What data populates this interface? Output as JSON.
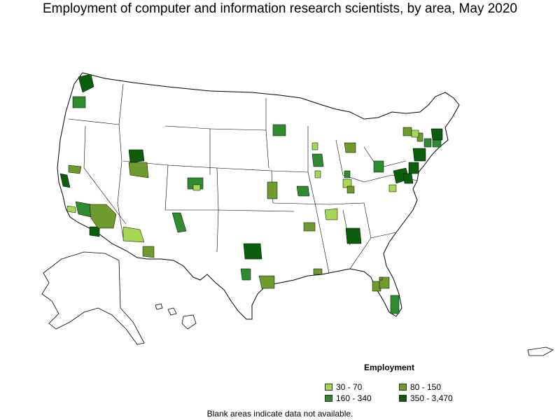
{
  "map": {
    "title": "Employment of computer and information research scientists, by area, May 2020",
    "note": "Blank areas indicate data not available.",
    "legend": {
      "title": "Employment",
      "items": [
        {
          "label": "30 - 70",
          "color": "#a6d854"
        },
        {
          "label": "80 - 150",
          "color": "#6e9a2e"
        },
        {
          "label": "160 - 340",
          "color": "#2e8b2e"
        },
        {
          "label": "350 - 3,470",
          "color": "#0b5e0b"
        }
      ]
    },
    "regions": [
      {
        "name": "seattle",
        "cls": 3
      },
      {
        "name": "portland",
        "cls": 2
      },
      {
        "name": "sacramento",
        "cls": 1
      },
      {
        "name": "san-jose",
        "cls": 3
      },
      {
        "name": "santa-barbara",
        "cls": 0
      },
      {
        "name": "los-angeles",
        "cls": 2
      },
      {
        "name": "san-diego",
        "cls": 3
      },
      {
        "name": "las-vegas",
        "cls": 1
      },
      {
        "name": "phoenix",
        "cls": 0
      },
      {
        "name": "tucson",
        "cls": 1
      },
      {
        "name": "salt-lake-city",
        "cls": 3
      },
      {
        "name": "provo",
        "cls": 1
      },
      {
        "name": "denver",
        "cls": 2
      },
      {
        "name": "colorado-springs",
        "cls": 0
      },
      {
        "name": "albuquerque",
        "cls": 2
      },
      {
        "name": "dallas",
        "cls": 3
      },
      {
        "name": "austin",
        "cls": 2
      },
      {
        "name": "houston",
        "cls": 1
      },
      {
        "name": "kansas-city",
        "cls": 1
      },
      {
        "name": "st-louis",
        "cls": 2
      },
      {
        "name": "minneapolis",
        "cls": 2
      },
      {
        "name": "chicago",
        "cls": 2
      },
      {
        "name": "champaign",
        "cls": 0
      },
      {
        "name": "detroit",
        "cls": 1
      },
      {
        "name": "madison",
        "cls": 0
      },
      {
        "name": "columbus",
        "cls": 2
      },
      {
        "name": "cincinnati",
        "cls": 0
      },
      {
        "name": "pittsburgh",
        "cls": 2
      },
      {
        "name": "nashville",
        "cls": 0
      },
      {
        "name": "huntsville",
        "cls": 1
      },
      {
        "name": "atlanta",
        "cls": 3
      },
      {
        "name": "tallahassee",
        "cls": 1
      },
      {
        "name": "tampa",
        "cls": 1
      },
      {
        "name": "orlando",
        "cls": 1
      },
      {
        "name": "miami",
        "cls": 2
      },
      {
        "name": "charlottesville",
        "cls": 0
      },
      {
        "name": "washington",
        "cls": 3
      },
      {
        "name": "baltimore",
        "cls": 3
      },
      {
        "name": "philadelphia",
        "cls": 3
      },
      {
        "name": "new-york",
        "cls": 3
      },
      {
        "name": "hartford",
        "cls": 2
      },
      {
        "name": "boston",
        "cls": 3
      },
      {
        "name": "providence",
        "cls": 2
      },
      {
        "name": "albany",
        "cls": 1
      },
      {
        "name": "rochester",
        "cls": 1
      },
      {
        "name": "syracuse",
        "cls": 0
      },
      {
        "name": "lexington",
        "cls": 1
      },
      {
        "name": "baton-rouge",
        "cls": 1
      }
    ]
  }
}
